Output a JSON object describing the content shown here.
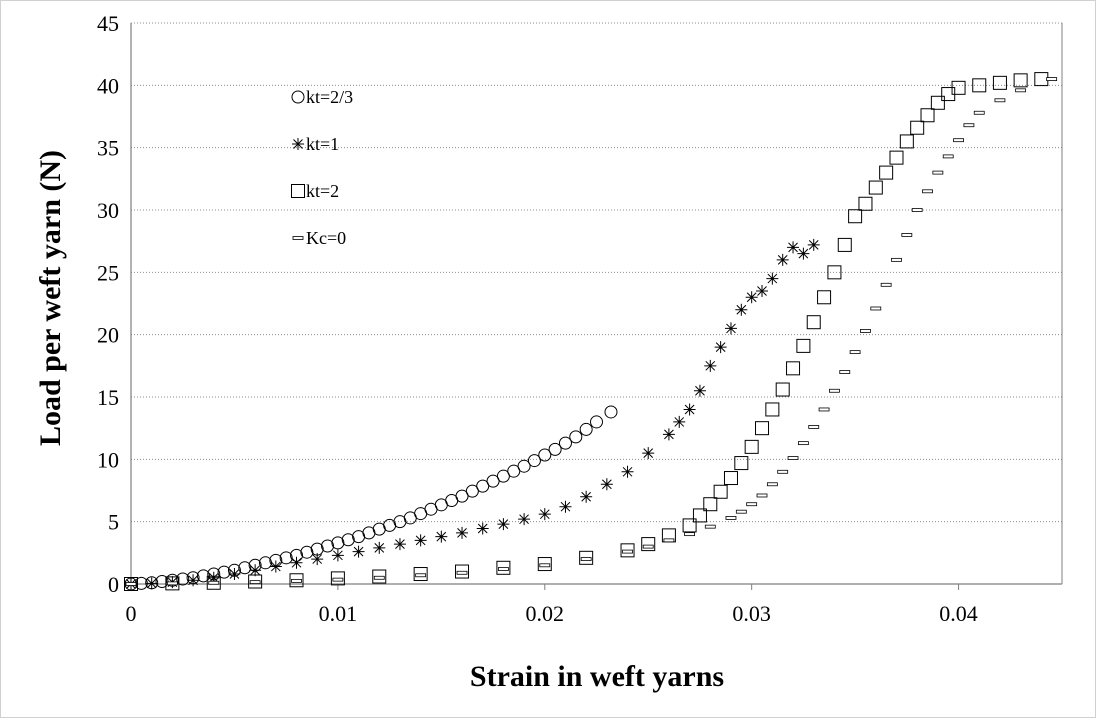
{
  "chart_data": {
    "type": "scatter",
    "title": "",
    "xlabel": "Strain in weft yarns",
    "ylabel": "Load per weft yarn  (N)",
    "xlim": [
      0,
      0.045
    ],
    "ylim": [
      0,
      45
    ],
    "xticks": [
      "0",
      "0.01",
      "0.02",
      "0.03",
      "0.04"
    ],
    "xtick_values": [
      0,
      0.01,
      0.02,
      0.03,
      0.04
    ],
    "yticks": [
      "0",
      "5",
      "10",
      "15",
      "20",
      "25",
      "30",
      "35",
      "40",
      "45"
    ],
    "ytick_values": [
      0,
      5,
      10,
      15,
      20,
      25,
      30,
      35,
      40,
      45
    ],
    "grid": "horizontal dotted",
    "legend_position": "top-left",
    "series": [
      {
        "name": "kt=2/3",
        "marker": "circle",
        "x": [
          0,
          0.0005,
          0.001,
          0.0015,
          0.002,
          0.0025,
          0.003,
          0.0035,
          0.004,
          0.0045,
          0.005,
          0.0055,
          0.006,
          0.0065,
          0.007,
          0.0075,
          0.008,
          0.0085,
          0.009,
          0.0095,
          0.01,
          0.0105,
          0.011,
          0.0115,
          0.012,
          0.0125,
          0.013,
          0.0135,
          0.014,
          0.0145,
          0.015,
          0.0155,
          0.016,
          0.0165,
          0.017,
          0.0175,
          0.018,
          0.0185,
          0.019,
          0.0195,
          0.02,
          0.0205,
          0.021,
          0.0215,
          0.022,
          0.0225,
          0.0232
        ],
        "y": [
          0,
          0.05,
          0.1,
          0.2,
          0.3,
          0.4,
          0.5,
          0.65,
          0.8,
          0.95,
          1.1,
          1.3,
          1.5,
          1.7,
          1.9,
          2.1,
          2.3,
          2.55,
          2.8,
          3.05,
          3.3,
          3.55,
          3.8,
          4.1,
          4.4,
          4.7,
          5.0,
          5.3,
          5.65,
          6.0,
          6.35,
          6.7,
          7.05,
          7.45,
          7.85,
          8.25,
          8.65,
          9.05,
          9.45,
          9.9,
          10.35,
          10.8,
          11.3,
          11.8,
          12.4,
          13.0,
          13.8
        ]
      },
      {
        "name": "kt=1",
        "marker": "asterisk",
        "x": [
          0,
          0.001,
          0.002,
          0.003,
          0.004,
          0.005,
          0.006,
          0.007,
          0.008,
          0.009,
          0.01,
          0.011,
          0.012,
          0.013,
          0.014,
          0.015,
          0.016,
          0.017,
          0.018,
          0.019,
          0.02,
          0.021,
          0.022,
          0.023,
          0.024,
          0.025,
          0.026,
          0.0265,
          0.027,
          0.0275,
          0.028,
          0.0285,
          0.029,
          0.0295,
          0.03,
          0.0305,
          0.031,
          0.0315,
          0.032,
          0.0325,
          0.033
        ],
        "y": [
          0,
          0.05,
          0.15,
          0.3,
          0.5,
          0.8,
          1.1,
          1.4,
          1.7,
          2.0,
          2.3,
          2.6,
          2.9,
          3.2,
          3.5,
          3.8,
          4.1,
          4.45,
          4.8,
          5.2,
          5.6,
          6.2,
          7.0,
          8.0,
          9.0,
          10.5,
          12.0,
          13.0,
          14.0,
          15.5,
          17.5,
          19.0,
          20.5,
          22.0,
          23.0,
          23.5,
          24.5,
          26.0,
          27.0,
          26.5,
          27.2
        ]
      },
      {
        "name": "kt=2",
        "marker": "square",
        "x": [
          0,
          0.002,
          0.004,
          0.006,
          0.008,
          0.01,
          0.012,
          0.014,
          0.016,
          0.018,
          0.02,
          0.022,
          0.024,
          0.025,
          0.026,
          0.027,
          0.0275,
          0.028,
          0.0285,
          0.029,
          0.0295,
          0.03,
          0.0305,
          0.031,
          0.0315,
          0.032,
          0.0325,
          0.033,
          0.0335,
          0.034,
          0.0345,
          0.035,
          0.0355,
          0.036,
          0.0365,
          0.037,
          0.0375,
          0.038,
          0.0385,
          0.039,
          0.0395,
          0.04,
          0.041,
          0.042,
          0.043,
          0.044
        ],
        "y": [
          0,
          0.05,
          0.1,
          0.2,
          0.3,
          0.45,
          0.6,
          0.8,
          1.0,
          1.3,
          1.6,
          2.1,
          2.7,
          3.2,
          3.9,
          4.7,
          5.5,
          6.4,
          7.4,
          8.5,
          9.7,
          11.0,
          12.5,
          14.0,
          15.6,
          17.3,
          19.1,
          21.0,
          23.0,
          25.0,
          27.2,
          29.5,
          30.5,
          31.8,
          33.0,
          34.2,
          35.5,
          36.6,
          37.6,
          38.6,
          39.3,
          39.8,
          40.0,
          40.2,
          40.4,
          40.5
        ]
      },
      {
        "name": "Kc=0",
        "marker": "dash",
        "x": [
          0,
          0.002,
          0.004,
          0.006,
          0.008,
          0.01,
          0.012,
          0.014,
          0.016,
          0.018,
          0.02,
          0.022,
          0.024,
          0.025,
          0.026,
          0.027,
          0.028,
          0.029,
          0.0295,
          0.03,
          0.0305,
          0.031,
          0.0315,
          0.032,
          0.0325,
          0.033,
          0.0335,
          0.034,
          0.0345,
          0.035,
          0.0355,
          0.036,
          0.0365,
          0.037,
          0.0375,
          0.038,
          0.0385,
          0.039,
          0.0395,
          0.04,
          0.0405,
          0.041,
          0.042,
          0.043,
          0.0445
        ],
        "y": [
          0,
          0.05,
          0.1,
          0.15,
          0.25,
          0.35,
          0.5,
          0.7,
          0.9,
          1.2,
          1.5,
          2.0,
          2.6,
          3.0,
          3.5,
          4.0,
          4.6,
          5.3,
          5.8,
          6.4,
          7.1,
          8.0,
          9.0,
          10.1,
          11.3,
          12.6,
          14.0,
          15.5,
          17.0,
          18.6,
          20.3,
          22.1,
          24.0,
          26.0,
          28.0,
          30.0,
          31.5,
          33.0,
          34.3,
          35.6,
          36.8,
          37.8,
          38.8,
          39.6,
          40.5
        ]
      }
    ]
  }
}
